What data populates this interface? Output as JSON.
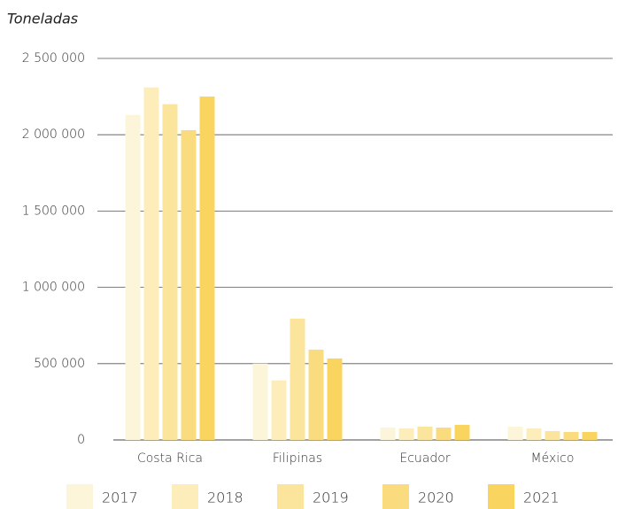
{
  "chart_data": {
    "type": "bar",
    "y_axis_label": "Toneladas",
    "categories": [
      "Costa Rica",
      "Filipinas",
      "Ecuador",
      "México"
    ],
    "series": [
      {
        "name": "2017",
        "color": "#fdf5d9",
        "values": [
          2130000,
          500000,
          81000,
          87000
        ]
      },
      {
        "name": "2018",
        "color": "#fcedbb",
        "values": [
          2310000,
          390000,
          75000,
          75000
        ]
      },
      {
        "name": "2019",
        "color": "#fbe49c",
        "values": [
          2200000,
          795000,
          87000,
          58000
        ]
      },
      {
        "name": "2020",
        "color": "#fadc7e",
        "values": [
          2030000,
          592000,
          81000,
          52000
        ]
      },
      {
        "name": "2021",
        "color": "#f9d45f",
        "values": [
          2250000,
          534000,
          99000,
          52000
        ]
      }
    ],
    "ylim": [
      0,
      2500000
    ],
    "yticks": [
      0,
      {
        "value": 500000,
        "label": "500 000"
      },
      {
        "value": 1000000,
        "label": "1 000 000"
      },
      {
        "value": 1500000,
        "label": "1 500 000"
      },
      {
        "value": 2000000,
        "label": "2 000 000"
      },
      {
        "value": 2500000,
        "label": "2 500 000"
      }
    ],
    "grid": true,
    "legend": "bottom"
  }
}
